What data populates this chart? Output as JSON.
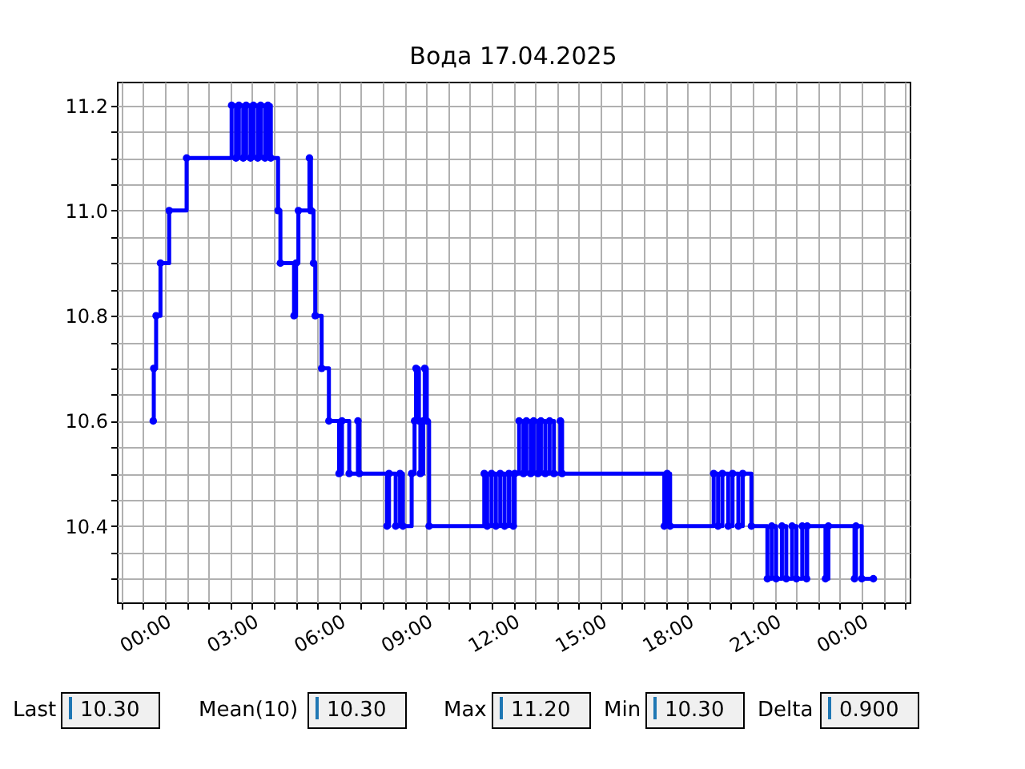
{
  "chart_data": {
    "type": "step",
    "title": "Вода 17.04.2025",
    "marker": "circle",
    "grid": true,
    "x": [
      -0.4,
      -0.38,
      -0.3,
      -0.15,
      0.15,
      0.75,
      2.3,
      2.45,
      2.55,
      2.7,
      2.8,
      2.95,
      3.05,
      3.2,
      3.3,
      3.45,
      3.55,
      3.65,
      3.9,
      3.98,
      4.45,
      4.52,
      4.6,
      4.98,
      5.03,
      5.12,
      5.18,
      5.4,
      5.65,
      6.0,
      6.1,
      6.35,
      6.65,
      6.7,
      7.65,
      7.72,
      7.95,
      8.1,
      8.2,
      8.5,
      8.6,
      8.65,
      8.75,
      8.8,
      8.9,
      8.95,
      9.02,
      9.1,
      11.0,
      11.1,
      11.25,
      11.4,
      11.55,
      11.7,
      11.85,
      12.0,
      12.05,
      12.2,
      12.35,
      12.45,
      12.6,
      12.7,
      12.85,
      12.95,
      13.1,
      13.25,
      13.4,
      13.62,
      13.68,
      17.2,
      17.3,
      17.4,
      18.9,
      19.05,
      19.2,
      19.4,
      19.55,
      19.75,
      19.9,
      20.2,
      20.75,
      20.9,
      21.05,
      21.25,
      21.4,
      21.6,
      21.75,
      21.95,
      22.1,
      22.12,
      22.75,
      22.85,
      23.75,
      23.8,
      24.0,
      24.4
    ],
    "series": [
      {
        "color": "#0000ff",
        "values": [
          10.6,
          10.7,
          10.8,
          10.9,
          11.0,
          11.1,
          11.2,
          11.1,
          11.2,
          11.1,
          11.2,
          11.1,
          11.2,
          11.1,
          11.2,
          11.1,
          11.2,
          11.1,
          11.0,
          10.9,
          10.8,
          10.9,
          11.0,
          11.1,
          11.0,
          10.9,
          10.8,
          10.7,
          10.6,
          10.5,
          10.6,
          10.5,
          10.6,
          10.5,
          10.4,
          10.5,
          10.4,
          10.5,
          10.4,
          10.5,
          10.6,
          10.7,
          10.6,
          10.5,
          10.6,
          10.7,
          10.6,
          10.4,
          10.5,
          10.4,
          10.5,
          10.4,
          10.5,
          10.4,
          10.5,
          10.4,
          10.5,
          10.6,
          10.5,
          10.6,
          10.5,
          10.6,
          10.5,
          10.6,
          10.5,
          10.6,
          10.5,
          10.6,
          10.5,
          10.4,
          10.5,
          10.4,
          10.5,
          10.4,
          10.5,
          10.4,
          10.5,
          10.4,
          10.5,
          10.4,
          10.3,
          10.4,
          10.3,
          10.4,
          10.3,
          10.4,
          10.3,
          10.4,
          10.3,
          10.4,
          10.3,
          10.4,
          10.3,
          10.4,
          10.3,
          10.3
        ]
      }
    ],
    "xlim": [
      -1.65,
      25.65
    ],
    "xticks": [
      {
        "value": -1.5,
        "label": null
      },
      {
        "value": -0.75,
        "label": null
      },
      {
        "value": 0,
        "label": "00:00"
      },
      {
        "value": 0.75,
        "label": null
      },
      {
        "value": 1.5,
        "label": null
      },
      {
        "value": 2.25,
        "label": null
      },
      {
        "value": 3,
        "label": "03:00"
      },
      {
        "value": 3.75,
        "label": null
      },
      {
        "value": 4.5,
        "label": null
      },
      {
        "value": 5.25,
        "label": null
      },
      {
        "value": 6,
        "label": "06:00"
      },
      {
        "value": 6.75,
        "label": null
      },
      {
        "value": 7.5,
        "label": null
      },
      {
        "value": 8.25,
        "label": null
      },
      {
        "value": 9,
        "label": "09:00"
      },
      {
        "value": 9.75,
        "label": null
      },
      {
        "value": 10.5,
        "label": null
      },
      {
        "value": 11.25,
        "label": null
      },
      {
        "value": 12,
        "label": "12:00"
      },
      {
        "value": 12.75,
        "label": null
      },
      {
        "value": 13.5,
        "label": null
      },
      {
        "value": 14.25,
        "label": null
      },
      {
        "value": 15,
        "label": "15:00"
      },
      {
        "value": 15.75,
        "label": null
      },
      {
        "value": 16.5,
        "label": null
      },
      {
        "value": 17.25,
        "label": null
      },
      {
        "value": 18,
        "label": "18:00"
      },
      {
        "value": 18.75,
        "label": null
      },
      {
        "value": 19.5,
        "label": null
      },
      {
        "value": 20.25,
        "label": null
      },
      {
        "value": 21,
        "label": "21:00"
      },
      {
        "value": 21.75,
        "label": null
      },
      {
        "value": 22.5,
        "label": null
      },
      {
        "value": 23.25,
        "label": null
      },
      {
        "value": 24,
        "label": "00:00"
      },
      {
        "value": 24.75,
        "label": null
      },
      {
        "value": 25.5,
        "label": null
      }
    ],
    "ylim": [
      10.255,
      11.245
    ],
    "yticks": [
      {
        "value": 10.3,
        "label": null
      },
      {
        "value": 10.35,
        "label": null
      },
      {
        "value": 10.4,
        "label": "10.4"
      },
      {
        "value": 10.45,
        "label": null
      },
      {
        "value": 10.5,
        "label": null
      },
      {
        "value": 10.55,
        "label": null
      },
      {
        "value": 10.6,
        "label": "10.6"
      },
      {
        "value": 10.65,
        "label": null
      },
      {
        "value": 10.7,
        "label": null
      },
      {
        "value": 10.75,
        "label": null
      },
      {
        "value": 10.8,
        "label": "10.8"
      },
      {
        "value": 10.85,
        "label": null
      },
      {
        "value": 10.9,
        "label": null
      },
      {
        "value": 10.95,
        "label": null
      },
      {
        "value": 11.0,
        "label": "11.0"
      },
      {
        "value": 11.05,
        "label": null
      },
      {
        "value": 11.1,
        "label": null
      },
      {
        "value": 11.15,
        "label": null
      },
      {
        "value": 11.2,
        "label": "11.2"
      }
    ],
    "annotations": [
      "Last",
      "10.30",
      "Mean(10)",
      "10.30",
      "Max",
      "11.20",
      "Min",
      "10.30",
      "Delta",
      "0.900"
    ]
  }
}
